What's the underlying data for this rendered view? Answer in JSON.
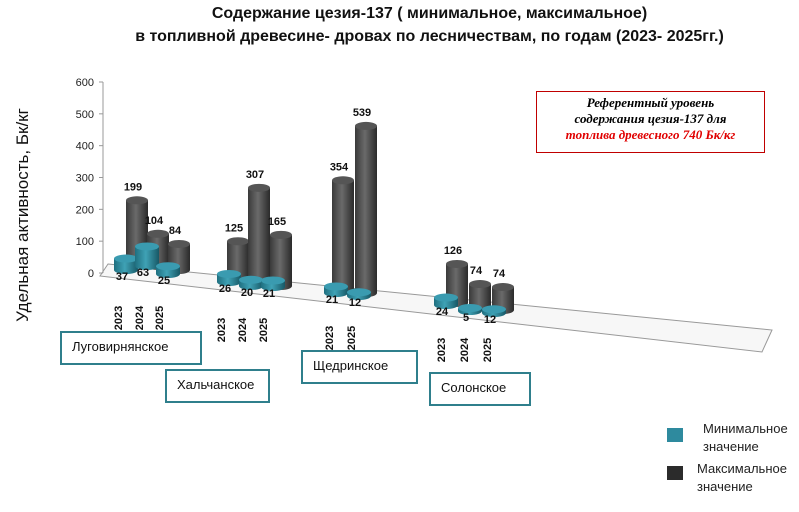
{
  "chart_data": {
    "type": "bar",
    "style": "3d-cylinder",
    "title": [
      "Содержание цезия-137 ( минимальное, максимальное)",
      "в топливной древесине- дровах  по лесничествам, по годам (2023- 2025гг.)"
    ],
    "ylabel": "Удельная активность, Бк/кг",
    "ylim": [
      0,
      600
    ],
    "yticks": [
      "0",
      "100",
      "200",
      "300",
      "400",
      "500",
      "600"
    ],
    "groups": [
      {
        "name": "Луговирнянское",
        "years": [
          "2023",
          "2024",
          "2025"
        ],
        "min": [
          37,
          63,
          25
        ],
        "max": [
          199,
          104,
          84
        ]
      },
      {
        "name": "Хальчанское",
        "years": [
          "2023",
          "2024",
          "2025"
        ],
        "min": [
          26,
          20,
          21
        ],
        "max": [
          125,
          307,
          165
        ]
      },
      {
        "name": "Щедринское",
        "years": [
          "2023",
          "2025"
        ],
        "min": [
          21,
          12
        ],
        "max": [
          354,
          539
        ]
      },
      {
        "name": "Солонское",
        "years": [
          "2023",
          "2024",
          "2025"
        ],
        "min": [
          24,
          5,
          12
        ],
        "max": [
          126,
          74,
          74
        ]
      }
    ],
    "legend": [
      {
        "name": "Минимальное значение",
        "color": "#2e8a9e"
      },
      {
        "name": "Максимальное значение",
        "color": "#2b2b2b"
      }
    ],
    "legend_placement": "bottom-right",
    "annotation": {
      "line1": "Референтный  уровень",
      "line2": "содержания цезия-137 для",
      "line3": "топлива древесного  740 Бк/кг"
    }
  },
  "colors": {
    "min": "#2e8a9e",
    "max": "#4a4a4a",
    "annotation_border": "#c00000",
    "category_border": "#2f7f8c"
  }
}
